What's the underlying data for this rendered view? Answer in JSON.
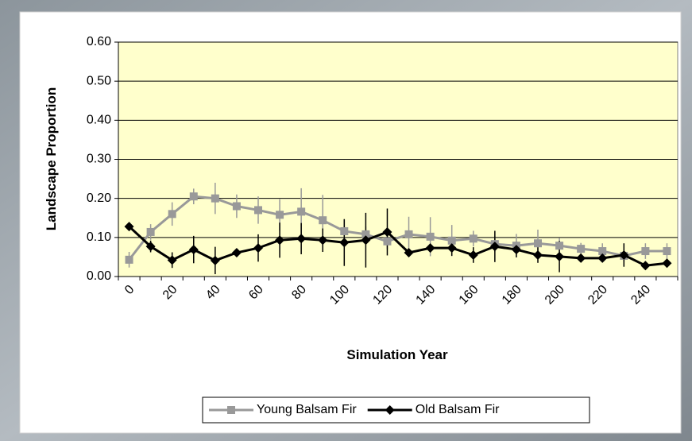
{
  "chart_data": {
    "type": "line",
    "xlabel": "Simulation Year",
    "ylabel": "Landscape Proportion",
    "categories": [
      0,
      null,
      20,
      null,
      40,
      null,
      60,
      null,
      80,
      null,
      100,
      null,
      120,
      null,
      140,
      null,
      160,
      null,
      180,
      null,
      200,
      null,
      220,
      null,
      240,
      null
    ],
    "ylim": [
      0,
      0.6
    ],
    "yticks": [
      {
        "value": 0,
        "label": "0.00"
      },
      {
        "value": 0.1,
        "label": "0.10"
      },
      {
        "value": 0.2,
        "label": "0.20"
      },
      {
        "value": 0.3,
        "label": "0.30"
      },
      {
        "value": 0.4,
        "label": "0.40"
      },
      {
        "value": 0.5,
        "label": "0.50"
      },
      {
        "value": 0.6,
        "label": "0.60"
      }
    ],
    "grid": true,
    "legend": "bottom",
    "plot_background": "#ffffcc",
    "series": [
      {
        "name": "Young Balsam Fir",
        "color": "#999999",
        "marker": "square",
        "values": [
          0.043,
          0.114,
          0.16,
          0.205,
          0.2,
          0.18,
          0.17,
          0.158,
          0.166,
          0.144,
          0.116,
          0.108,
          0.09,
          0.108,
          0.102,
          0.092,
          0.097,
          0.083,
          0.079,
          0.085,
          0.079,
          0.071,
          0.065,
          0.053,
          0.065,
          0.065
        ],
        "errors": [
          0.02,
          0.02,
          0.03,
          0.02,
          0.04,
          0.03,
          0.035,
          0.04,
          0.06,
          0.065,
          0.03,
          0.02,
          0.02,
          0.045,
          0.05,
          0.04,
          0.02,
          0.02,
          0.03,
          0.035,
          0.02,
          0.015,
          0.02,
          0.015,
          0.02,
          0.02
        ]
      },
      {
        "name": "Old Balsam Fir",
        "color": "#000000",
        "marker": "diamond",
        "values": [
          0.128,
          0.077,
          0.042,
          0.069,
          0.041,
          0.061,
          0.073,
          0.093,
          0.097,
          0.093,
          0.087,
          0.093,
          0.114,
          0.061,
          0.073,
          0.073,
          0.055,
          0.077,
          0.069,
          0.055,
          0.051,
          0.047,
          0.047,
          0.055,
          0.028,
          0.034
        ],
        "errors": [
          0.01,
          0.015,
          0.02,
          0.035,
          0.035,
          0.01,
          0.035,
          0.045,
          0.04,
          0.03,
          0.06,
          0.07,
          0.06,
          0.01,
          0.01,
          0.02,
          0.02,
          0.04,
          0.02,
          0.02,
          0.04,
          0.01,
          0.01,
          0.03,
          0.01,
          0.01
        ]
      }
    ]
  }
}
